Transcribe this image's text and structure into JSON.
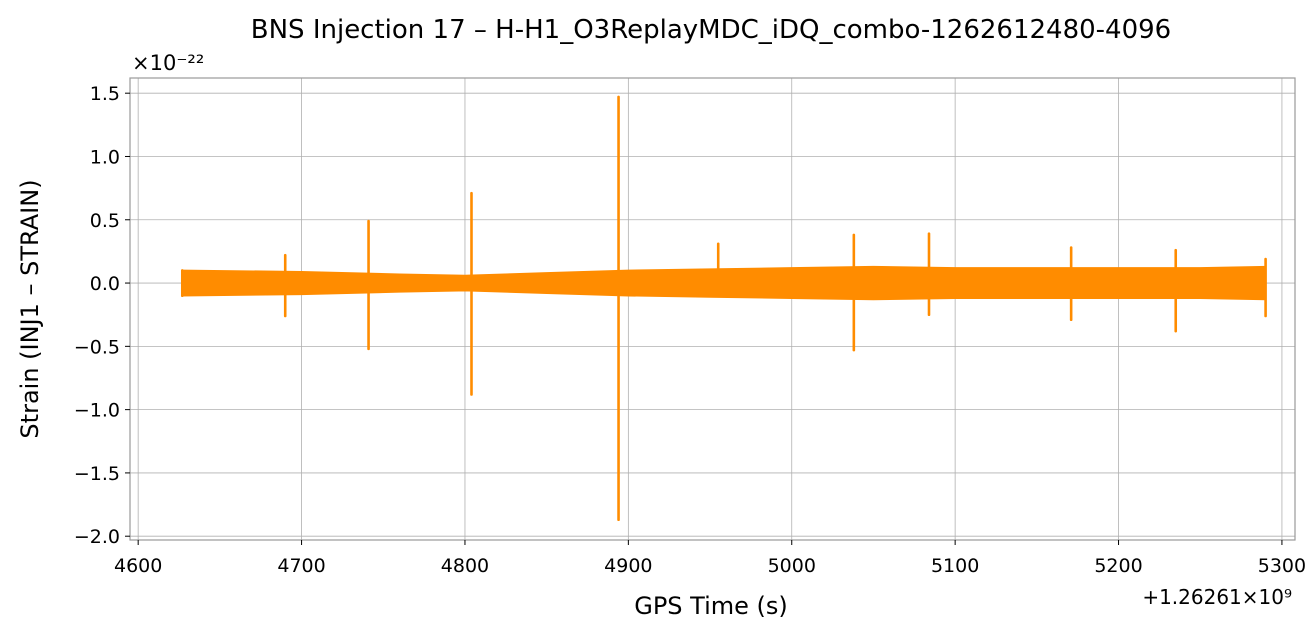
{
  "chart_data": {
    "type": "line",
    "title": "BNS Injection 17 – H-H1_O3ReplayMDC_iDQ_combo-1262612480-4096",
    "xlabel": "GPS Time (s)",
    "ylabel": "Strain (INJ1 – STRAIN)",
    "x_offset_label": "+1.26261×10⁹",
    "y_scale_label": "×10⁻²²",
    "xlim": [
      4595,
      5308
    ],
    "ylim": [
      -2.03,
      1.62
    ],
    "x_ticks": [
      4600,
      4700,
      4800,
      4900,
      5000,
      5100,
      5200,
      5300
    ],
    "x_tick_labels": [
      "4600",
      "4700",
      "4800",
      "4900",
      "5000",
      "5100",
      "5200",
      "5300"
    ],
    "y_ticks": [
      1.5,
      1.0,
      0.5,
      0.0,
      -0.5,
      -1.0,
      -1.5,
      -2.0
    ],
    "y_tick_labels": [
      "1.5",
      "1.0",
      "0.5",
      "0.0",
      "−0.5",
      "−1.0",
      "−1.5",
      "−2.0"
    ],
    "grid": true,
    "series_color": "#ff8c00",
    "series": [
      {
        "x": [
          4627,
          4690,
          4741,
          4804,
          4894,
          4955,
          5038,
          5084,
          5171,
          5235,
          5290
        ],
        "y_max": [
          0.1,
          0.22,
          0.49,
          0.71,
          1.47,
          0.31,
          0.38,
          0.39,
          0.28,
          0.26,
          0.19
        ],
        "y_min": [
          -0.1,
          -0.26,
          -0.52,
          -0.88,
          -1.87,
          -0.05,
          -0.53,
          -0.25,
          -0.29,
          -0.38,
          -0.26
        ]
      }
    ],
    "envelope": {
      "x": [
        4627,
        4700,
        4760,
        4800,
        4850,
        4900,
        4950,
        5000,
        5050,
        5100,
        5150,
        5200,
        5250,
        5290
      ],
      "upper": [
        0.1,
        0.09,
        0.07,
        0.06,
        0.08,
        0.1,
        0.11,
        0.12,
        0.13,
        0.12,
        0.12,
        0.12,
        0.12,
        0.13
      ],
      "lower": [
        -0.1,
        -0.09,
        -0.07,
        -0.06,
        -0.08,
        -0.1,
        -0.11,
        -0.12,
        -0.13,
        -0.12,
        -0.12,
        -0.12,
        -0.12,
        -0.13
      ]
    }
  }
}
